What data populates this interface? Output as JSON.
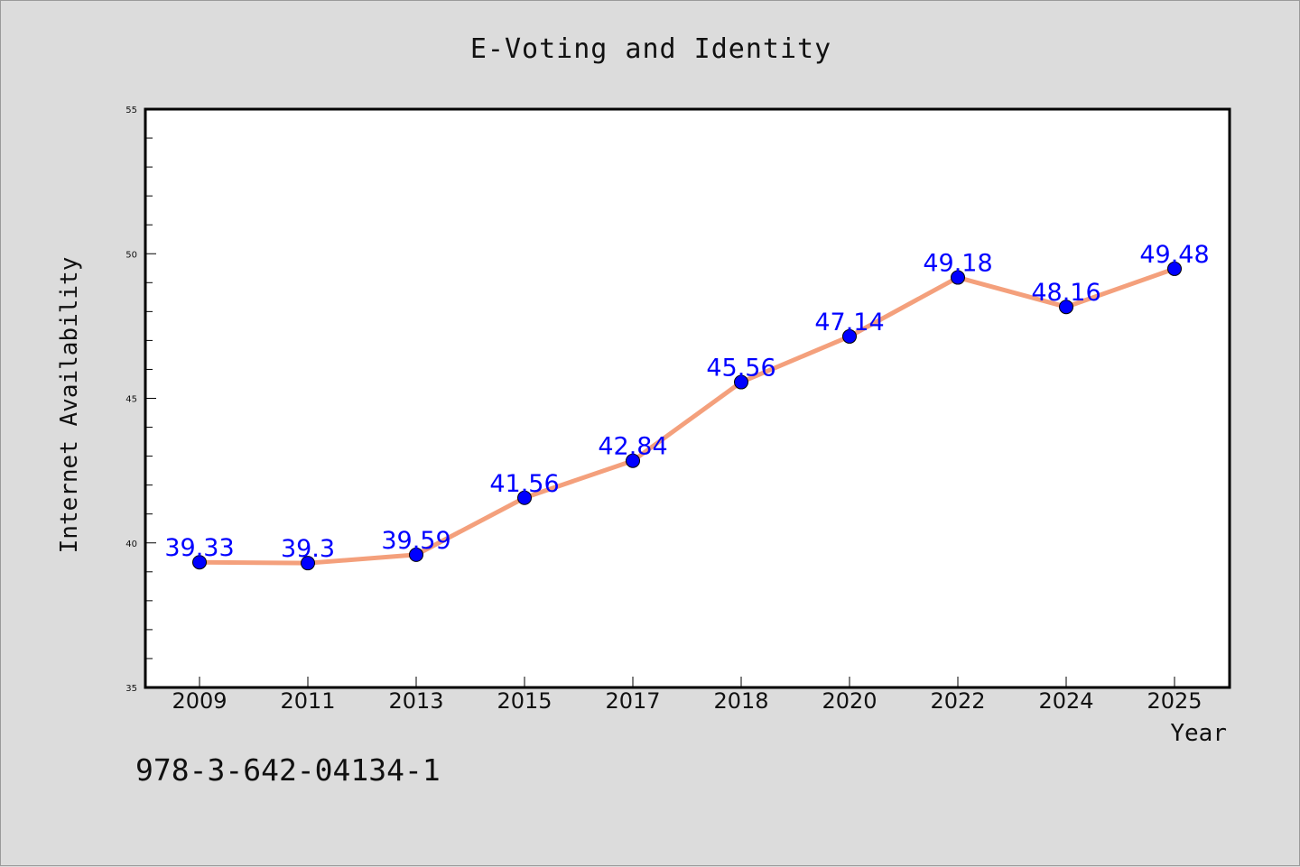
{
  "chart_data": {
    "type": "line",
    "title": "E-Voting and Identity",
    "xlabel": "Year",
    "ylabel": "Internet Availability",
    "categories": [
      "2009",
      "2011",
      "2013",
      "2015",
      "2017",
      "2018",
      "2020",
      "2022",
      "2024",
      "2025"
    ],
    "series": [
      {
        "values": [
          39.33,
          39.3,
          39.59,
          41.56,
          42.84,
          45.56,
          47.14,
          49.18,
          48.16,
          49.48
        ],
        "labels": [
          "39.33",
          "39.3",
          "39.59",
          "41.56",
          "42.84",
          "45.56",
          "47.14",
          "49.18",
          "48.16",
          "49.48"
        ],
        "line_color": "#f4a07c",
        "marker_color": "#0000ff"
      }
    ],
    "ylim": [
      35,
      55
    ],
    "yticks": [
      "35",
      "40",
      "45",
      "50",
      "55"
    ],
    "grid": false,
    "legend": "none"
  },
  "footnote": "978-3-642-04134-1",
  "colors": {
    "background": "#dcdcdc",
    "plot_area": "#ffffff",
    "data_label": "#0000ff"
  }
}
